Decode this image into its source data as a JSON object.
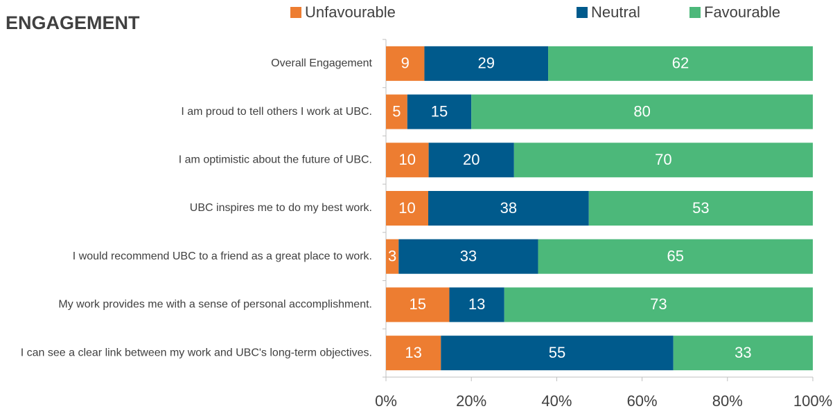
{
  "chart_data": {
    "type": "stacked-bar-horizontal",
    "title": "ENGAGEMENT",
    "stack": "percent",
    "categories": [
      "Overall Engagement",
      "I am proud to tell others I work at UBC.",
      "I am optimistic about the future of UBC.",
      "UBC inspires me to do my best work.",
      "I would recommend UBC to a friend as a great place to work.",
      "My work provides me with a sense of personal accomplishment.",
      "I can see a clear link between my work and UBC's long-term objectives."
    ],
    "series": [
      {
        "name": "Unfavourable",
        "color": "#ED7D31",
        "values": [
          9,
          5,
          10,
          10,
          3,
          15,
          13
        ]
      },
      {
        "name": "Neutral",
        "color": "#005A8C",
        "values": [
          29,
          15,
          20,
          38,
          33,
          13,
          55
        ]
      },
      {
        "name": "Favourable",
        "color": "#4CB87A",
        "values": [
          62,
          80,
          70,
          53,
          65,
          73,
          33
        ]
      }
    ],
    "xlim": [
      0,
      100
    ],
    "xticks": [
      {
        "value": 0,
        "label": "0%"
      },
      {
        "value": 20,
        "label": "20%"
      },
      {
        "value": 40,
        "label": "40%"
      },
      {
        "value": 60,
        "label": "60%"
      },
      {
        "value": 80,
        "label": "80%"
      },
      {
        "value": 100,
        "label": "100%"
      }
    ],
    "legend": "top"
  }
}
